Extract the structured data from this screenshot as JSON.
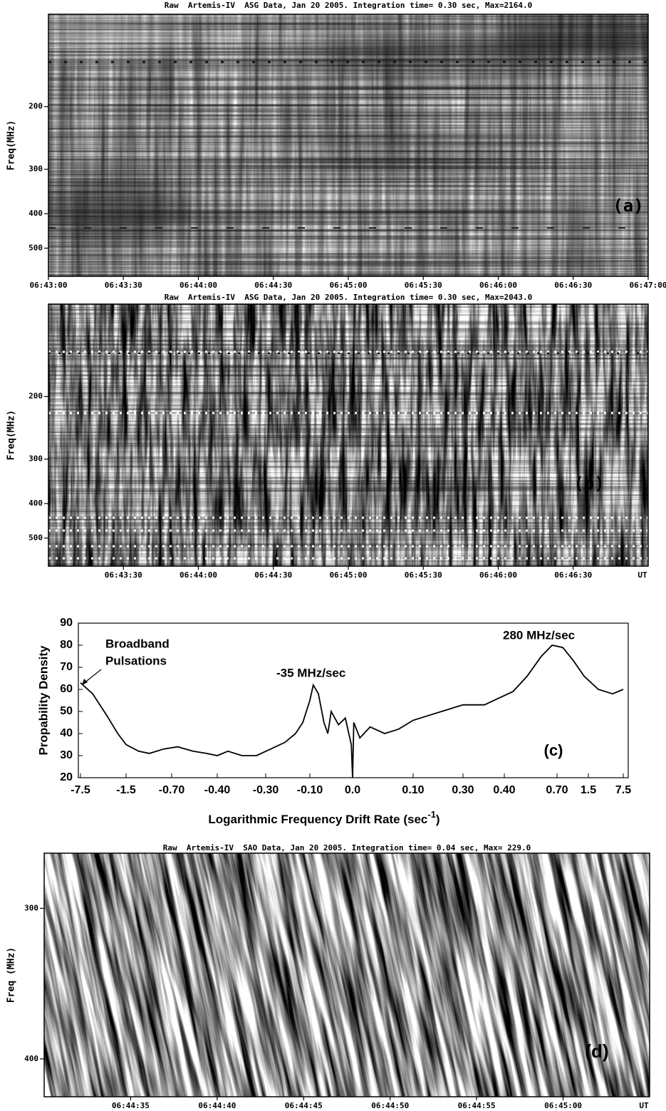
{
  "chart_data": [
    {
      "type": "spectrogram",
      "style": "raw",
      "title": "Raw  Artemis-IV  ASG Data, Jan 20 2005. Integration time= 0.30 sec, Max=2164.0",
      "ylabel": "Freq(MHz)",
      "yscale": "log",
      "y_inverted": true,
      "ylim": [
        110,
        600
      ],
      "yticks": [
        200,
        300,
        400,
        500
      ],
      "xlim": [
        "06:43:00",
        "06:47:00"
      ],
      "xticks": [
        "06:43:00",
        "06:43:30",
        "06:44:00",
        "06:44:30",
        "06:45:00",
        "06:45:30",
        "06:46:00",
        "06:46:30",
        "06:47:00"
      ],
      "panel_label": "(a)"
    },
    {
      "type": "spectrogram",
      "style": "difference",
      "title": "Raw  Artemis-IV  ASG Data, Jan 20 2005. Integration time= 0.30 sec, Max=2043.0",
      "ylabel": "Freq(MHz)",
      "yscale": "log",
      "y_inverted": true,
      "ylim": [
        110,
        600
      ],
      "yticks": [
        200,
        300,
        400,
        500
      ],
      "xlim": [
        "06:43:00",
        "06:47:00"
      ],
      "xticks": [
        "06:43:30",
        "06:44:00",
        "06:44:30",
        "06:45:00",
        "06:45:30",
        "06:46:00",
        "06:46:30"
      ],
      "x_unit": "UT",
      "panel_label": "(b)"
    },
    {
      "type": "line",
      "color": "#000000",
      "ylabel": "Propability Density",
      "xlabel": "Logarithmic Frequency Drift Rate (sec",
      "xlabel_superscript": "-1",
      "xlabel_suffix": ")",
      "ylim": [
        20,
        90
      ],
      "yticks": [
        20,
        30,
        40,
        50,
        60,
        70,
        80,
        90
      ],
      "xlim": [
        -7.5,
        7.5
      ],
      "xticks": [
        -7.5,
        -1.5,
        {
          "value": -0.7,
          "label": "-0.70"
        },
        {
          "value": -0.4,
          "label": "-0.40"
        },
        {
          "value": -0.3,
          "label": "-0.30"
        },
        {
          "value": -0.1,
          "label": "-0.10"
        },
        {
          "value": 0,
          "label": "0.0"
        },
        {
          "value": 0.1,
          "label": "0.10"
        },
        {
          "value": 0.3,
          "label": "0.30"
        },
        {
          "value": 0.4,
          "label": "0.40"
        },
        {
          "value": 0.7,
          "label": "0.70"
        },
        1.5,
        7.5
      ],
      "x": [
        -7.5,
        -5.9,
        -4.0,
        -2.6,
        -1.5,
        -1.28,
        -1.09,
        -0.84,
        -0.66,
        -0.56,
        -0.47,
        -0.4,
        -0.378,
        -0.349,
        -0.319,
        -0.277,
        -0.213,
        -0.165,
        -0.132,
        -0.1,
        -0.092,
        -0.08,
        -0.067,
        -0.058,
        -0.05,
        -0.033,
        -0.017,
        -0.003,
        0.0,
        0.002,
        0.012,
        0.029,
        0.053,
        0.076,
        0.1,
        0.157,
        0.214,
        0.3,
        0.352,
        0.386,
        0.449,
        0.53,
        0.611,
        0.672,
        0.845,
        1.118,
        1.39,
        3.21,
        5.66,
        7.5
      ],
      "values": [
        63,
        58,
        48,
        40,
        35,
        32,
        31,
        33,
        34,
        32,
        31,
        30,
        32,
        30,
        30,
        33,
        36,
        40,
        45,
        55,
        62,
        58,
        45,
        40,
        50,
        44,
        47,
        35,
        20,
        45,
        38,
        43,
        40,
        42,
        46,
        48,
        50,
        53,
        53,
        56,
        59,
        66,
        75,
        80,
        79,
        73,
        66,
        60,
        58,
        60
      ],
      "annotations": [
        {
          "lines": [
            "Broadband",
            "Pulsations"
          ]
        },
        {
          "text": "-35 MHz/sec"
        },
        {
          "text": "280 MHz/sec"
        }
      ],
      "panel_label": "(c)"
    },
    {
      "type": "spectrogram",
      "style": "drift",
      "title": "Raw  Artemis-IV  SAO Data, Jan 20 2005. Integration time= 0.04 sec, Max= 229.0",
      "ylabel": "Freq (MHz)",
      "yscale": "log",
      "y_inverted": true,
      "ylim": [
        270,
        430
      ],
      "yticks": [
        300,
        400
      ],
      "xlim": [
        "06:44:30",
        "06:45:05"
      ],
      "xticks": [
        "06:44:35",
        "06:44:40",
        "06:44:45",
        "06:44:50",
        "06:44:55",
        "06:45:00"
      ],
      "x_unit": "UT",
      "panel_label": "(d)"
    }
  ]
}
